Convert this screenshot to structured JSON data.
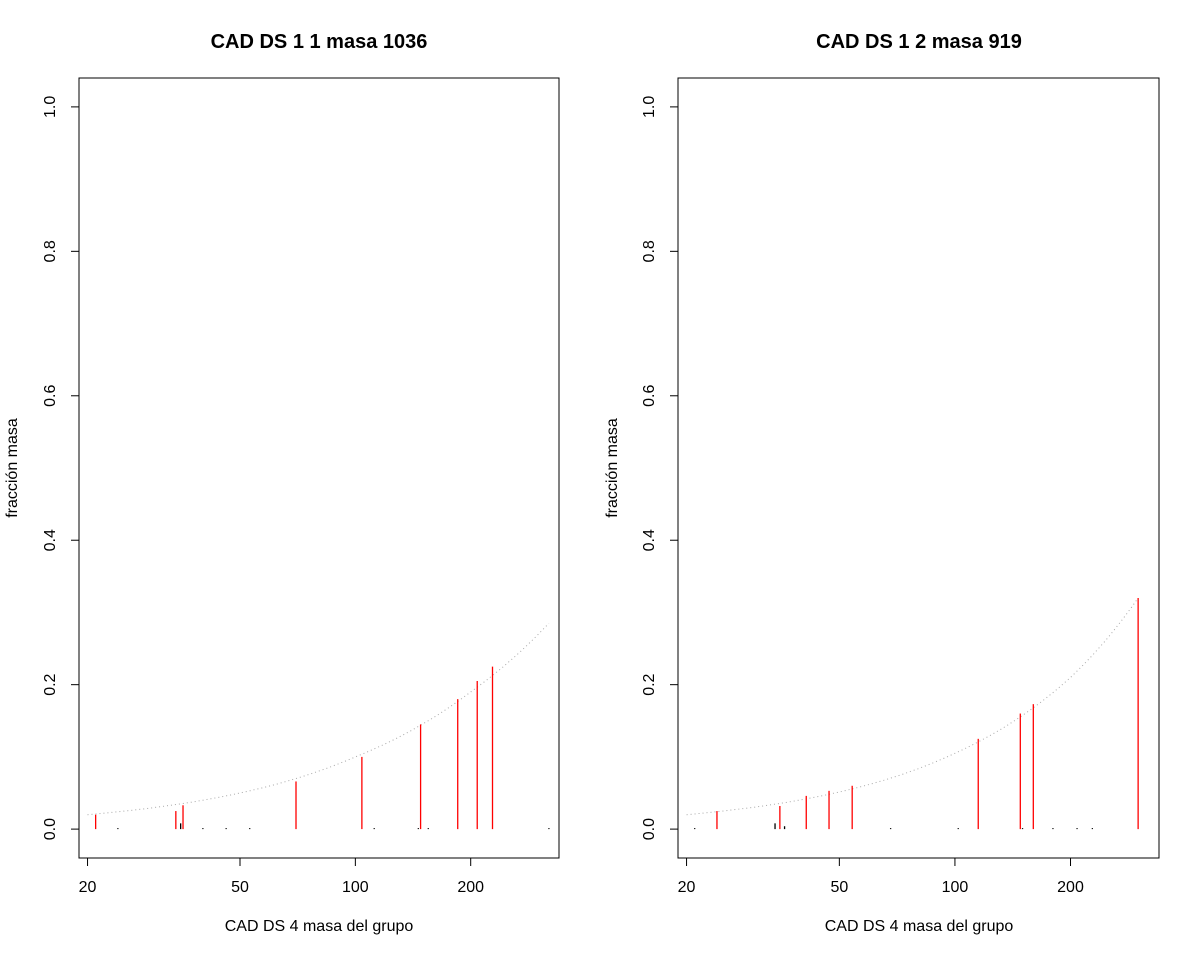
{
  "chart_data": [
    {
      "type": "bar",
      "title": "CAD DS 1 1 masa 1036",
      "xlabel": "CAD DS 4 masa del grupo",
      "ylabel": "fracción masa",
      "x_scale": "log",
      "xlim": [
        19,
        340
      ],
      "ylim": [
        -0.04,
        1.04
      ],
      "xticks": [
        20,
        50,
        100,
        200
      ],
      "yticks": [
        0.0,
        0.2,
        0.4,
        0.6,
        0.8,
        1.0
      ],
      "grid": false,
      "colors": {
        "highlighted": "#ff0000",
        "other": "#000000",
        "curve": "#a9a9a9"
      },
      "series": [
        {
          "x": [
            21,
            34,
            35.5,
            70,
            104,
            148,
            185,
            208,
            228
          ],
          "values": [
            0.02,
            0.025,
            0.033,
            0.066,
            0.1,
            0.145,
            0.18,
            0.205,
            0.225
          ],
          "color": "#ff0000"
        },
        {
          "x": [
            24,
            35,
            40,
            46,
            53,
            112,
            146,
            155,
            320
          ],
          "values": [
            0.001,
            0.008,
            0.001,
            0.001,
            0.001,
            0.001,
            0.001,
            0.001,
            0.001
          ],
          "color": "#000000"
        }
      ],
      "curve": {
        "x_range": [
          20,
          320
        ],
        "y_at": [
          [
            20,
            0.02
          ],
          [
            100,
            0.1
          ],
          [
            200,
            0.19
          ],
          [
            320,
            0.285
          ]
        ]
      }
    },
    {
      "type": "bar",
      "title": "CAD DS 1 2 masa 919",
      "xlabel": "CAD DS 4 masa del grupo",
      "ylabel": "fracción masa",
      "x_scale": "log",
      "xlim": [
        19,
        340
      ],
      "ylim": [
        -0.04,
        1.04
      ],
      "xticks": [
        20,
        50,
        100,
        200
      ],
      "yticks": [
        0.0,
        0.2,
        0.4,
        0.6,
        0.8,
        1.0
      ],
      "grid": false,
      "colors": {
        "highlighted": "#ff0000",
        "other": "#000000",
        "curve": "#a9a9a9"
      },
      "series": [
        {
          "x": [
            24,
            35,
            41,
            47,
            54,
            115,
            148,
            160,
            300
          ],
          "values": [
            0.025,
            0.032,
            0.046,
            0.053,
            0.06,
            0.125,
            0.16,
            0.173,
            0.32
          ],
          "color": "#ff0000"
        },
        {
          "x": [
            21,
            34,
            36,
            68,
            102,
            150,
            180,
            208,
            228
          ],
          "values": [
            0.001,
            0.008,
            0.004,
            0.001,
            0.001,
            0.001,
            0.001,
            0.001,
            0.001
          ],
          "color": "#000000"
        }
      ],
      "curve": {
        "x_range": [
          20,
          300
        ],
        "y_at": [
          [
            20,
            0.02
          ],
          [
            100,
            0.105
          ],
          [
            200,
            0.21
          ],
          [
            300,
            0.32
          ]
        ]
      }
    }
  ]
}
